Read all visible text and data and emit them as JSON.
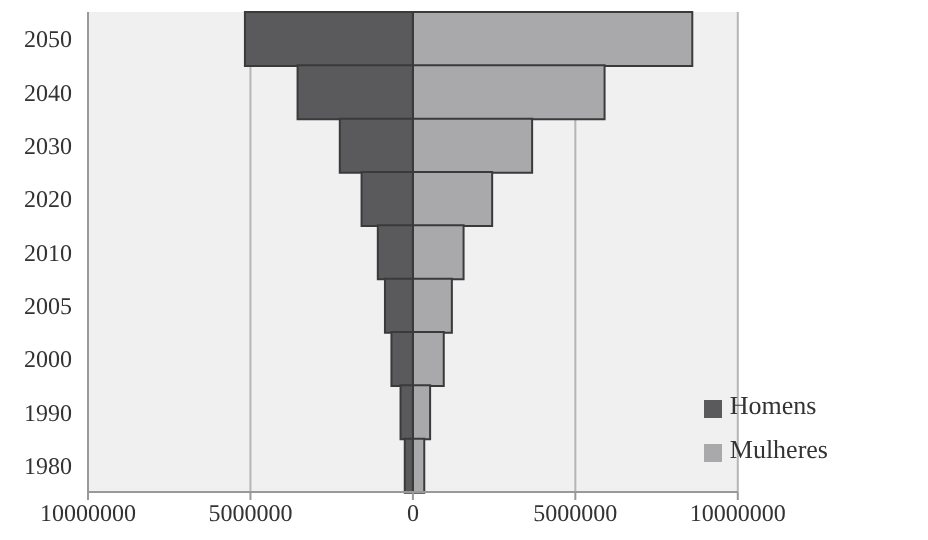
{
  "chart_data": {
    "type": "bar",
    "orientation": "horizontal",
    "stacked": true,
    "categories": [
      "2050",
      "2040",
      "2030",
      "2020",
      "2010",
      "2005",
      "2000",
      "1990",
      "1980"
    ],
    "series": [
      {
        "name": "Mulheres",
        "color": "#a9a9ab",
        "values": [
          8600000,
          5900000,
          3670000,
          2440000,
          1560000,
          1200000,
          950000,
          530000,
          350000
        ]
      },
      {
        "name": "Homens",
        "color": "#5a5a5c",
        "values": [
          -5170000,
          -3550000,
          -2250000,
          -1580000,
          -1080000,
          -860000,
          -660000,
          -380000,
          -250000
        ]
      }
    ],
    "xlim": [
      -10000000,
      10000000
    ],
    "xticks": [
      {
        "value": -10000000,
        "label": "10000000"
      },
      {
        "value": -5000000,
        "label": "5000000"
      },
      0,
      5000000,
      10000000
    ],
    "grid": "x",
    "legend": "bottom right"
  }
}
